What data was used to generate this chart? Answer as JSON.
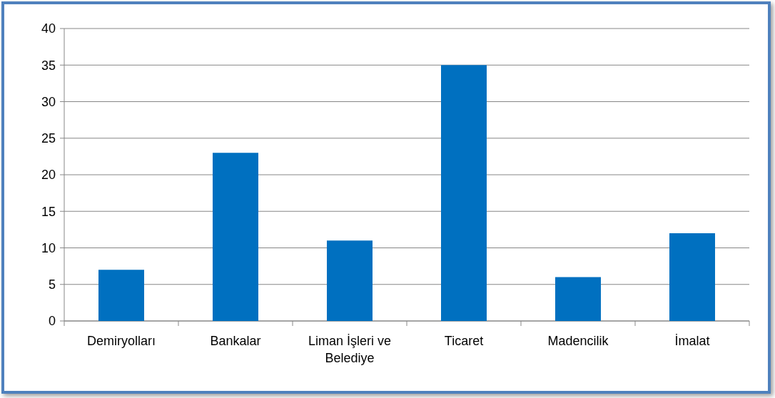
{
  "chart_data": {
    "type": "bar",
    "categories": [
      "Demiryolları",
      "Bankalar",
      "Liman İşleri ve Belediye",
      "Ticaret",
      "Madencilik",
      "İmalat"
    ],
    "values": [
      7,
      23,
      11,
      35,
      6,
      12
    ],
    "color": "#0070c0",
    "ylim": [
      0,
      40
    ],
    "yticks": [
      0,
      5,
      10,
      15,
      20,
      25,
      30,
      35,
      40
    ],
    "grid": "y"
  }
}
